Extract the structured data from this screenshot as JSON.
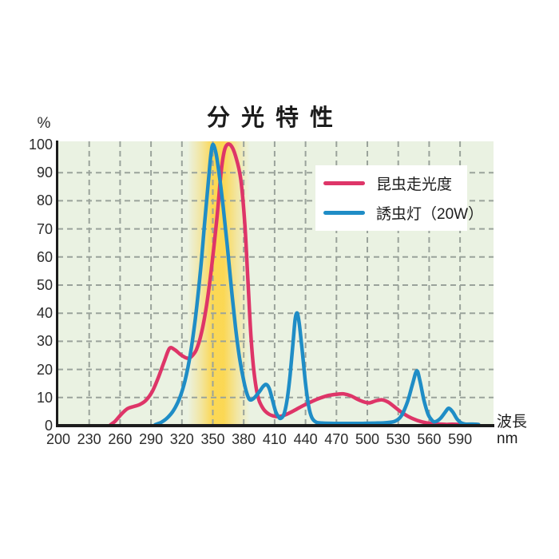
{
  "title": "分光特性",
  "y_axis": {
    "unit_label": "%",
    "ticks": [
      100,
      90,
      80,
      70,
      60,
      50,
      40,
      30,
      20,
      10,
      0
    ]
  },
  "x_axis": {
    "ticks": [
      200,
      230,
      260,
      290,
      320,
      350,
      380,
      410,
      440,
      470,
      500,
      530,
      560,
      590
    ],
    "name_line1": "波長",
    "name_line2": "nm"
  },
  "legend": [
    {
      "label": "昆虫走光度",
      "color": "#de3568"
    },
    {
      "label": "誘虫灯（20W）",
      "color": "#1f8dc6"
    }
  ],
  "colors": {
    "plot_background": "#eaf2e2",
    "grid": "#9aa39b",
    "axis": "#1c1c1c",
    "highlight_band": "#fcd64d",
    "series_pink": "#de3568",
    "series_blue": "#1f8dc6"
  },
  "chart_data": {
    "type": "line",
    "title": "分光特性",
    "xlabel": "波長 nm",
    "ylabel": "%",
    "xlim": [
      200,
      622
    ],
    "ylim": [
      0,
      100
    ],
    "x_ticks": [
      200,
      230,
      260,
      290,
      320,
      350,
      380,
      410,
      440,
      470,
      500,
      530,
      560,
      590
    ],
    "y_ticks": [
      0,
      10,
      20,
      30,
      40,
      50,
      60,
      70,
      80,
      90,
      100
    ],
    "grid": "dashed",
    "legend_position": "top-right",
    "highlight_band": {
      "from_nm": 338,
      "to_nm": 374,
      "color": "#fcd64d"
    },
    "series": [
      {
        "name": "昆虫走光度",
        "color": "#de3568",
        "points": [
          [
            250,
            0
          ],
          [
            255,
            1.5
          ],
          [
            261,
            4
          ],
          [
            267,
            6
          ],
          [
            273,
            6.8
          ],
          [
            279,
            7.5
          ],
          [
            285,
            9
          ],
          [
            291,
            12
          ],
          [
            297,
            17
          ],
          [
            303,
            23
          ],
          [
            308,
            27.5
          ],
          [
            313,
            27
          ],
          [
            319,
            25.2
          ],
          [
            325,
            24
          ],
          [
            329,
            24.5
          ],
          [
            334,
            27
          ],
          [
            339,
            33
          ],
          [
            344,
            43
          ],
          [
            349,
            57
          ],
          [
            354,
            74
          ],
          [
            358,
            90
          ],
          [
            361,
            97.5
          ],
          [
            364,
            100
          ],
          [
            368,
            99.5
          ],
          [
            372,
            96
          ],
          [
            377,
            88
          ],
          [
            381,
            72
          ],
          [
            384,
            52
          ],
          [
            387,
            32
          ],
          [
            390,
            19
          ],
          [
            394,
            10
          ],
          [
            399,
            6
          ],
          [
            404,
            4.2
          ],
          [
            409,
            3.4
          ],
          [
            414,
            3.2
          ],
          [
            420,
            3.8
          ],
          [
            428,
            5.2
          ],
          [
            436,
            6.8
          ],
          [
            445,
            8.4
          ],
          [
            454,
            9.8
          ],
          [
            463,
            10.8
          ],
          [
            471,
            11.2
          ],
          [
            477,
            11.3
          ],
          [
            484,
            10.6
          ],
          [
            491,
            9.3
          ],
          [
            497,
            8.4
          ],
          [
            502,
            8.1
          ],
          [
            508,
            8.8
          ],
          [
            514,
            9.2
          ],
          [
            520,
            8.4
          ],
          [
            526,
            6.8
          ],
          [
            533,
            4.8
          ],
          [
            541,
            3
          ],
          [
            549,
            1.8
          ],
          [
            557,
            1
          ],
          [
            566,
            0.6
          ],
          [
            577,
            0.4
          ],
          [
            590,
            0.3
          ],
          [
            608,
            0.3
          ]
        ]
      },
      {
        "name": "誘虫灯（20W）",
        "color": "#1f8dc6",
        "points": [
          [
            294,
            0.3
          ],
          [
            300,
            1.2
          ],
          [
            306,
            2.8
          ],
          [
            312,
            5.5
          ],
          [
            318,
            10
          ],
          [
            323,
            16
          ],
          [
            328,
            25
          ],
          [
            333,
            38
          ],
          [
            338,
            55
          ],
          [
            342,
            72
          ],
          [
            346,
            88
          ],
          [
            348,
            96
          ],
          [
            350,
            100
          ],
          [
            353,
            97
          ],
          [
            356,
            90
          ],
          [
            360,
            78
          ],
          [
            364,
            64
          ],
          [
            368,
            49
          ],
          [
            372,
            35
          ],
          [
            376,
            24
          ],
          [
            380,
            16
          ],
          [
            383,
            11.5
          ],
          [
            386,
            9.2
          ],
          [
            390,
            9.8
          ],
          [
            395,
            12
          ],
          [
            399,
            14
          ],
          [
            402,
            14.6
          ],
          [
            405,
            13
          ],
          [
            408,
            9
          ],
          [
            411,
            5
          ],
          [
            414,
            3
          ],
          [
            416,
            2.6
          ],
          [
            419,
            4
          ],
          [
            422,
            9
          ],
          [
            425,
            18
          ],
          [
            428,
            30
          ],
          [
            430,
            38
          ],
          [
            432,
            40
          ],
          [
            434,
            36
          ],
          [
            437,
            26
          ],
          [
            440,
            15
          ],
          [
            443,
            7
          ],
          [
            446,
            3
          ],
          [
            450,
            1.3
          ],
          [
            456,
            0.9
          ],
          [
            468,
            0.8
          ],
          [
            482,
            0.8
          ],
          [
            496,
            0.8
          ],
          [
            510,
            0.9
          ],
          [
            520,
            1.1
          ],
          [
            527,
            1.6
          ],
          [
            533,
            3.5
          ],
          [
            539,
            8.5
          ],
          [
            544,
            15
          ],
          [
            548,
            19.5
          ],
          [
            551,
            16
          ],
          [
            555,
            9
          ],
          [
            559,
            4
          ],
          [
            563,
            1.8
          ],
          [
            566,
            1.4
          ],
          [
            571,
            2.6
          ],
          [
            576,
            5
          ],
          [
            579,
            6.2
          ],
          [
            583,
            4.8
          ],
          [
            587,
            2.4
          ],
          [
            591,
            1
          ],
          [
            596,
            0.5
          ],
          [
            608,
            0.4
          ]
        ]
      }
    ]
  }
}
